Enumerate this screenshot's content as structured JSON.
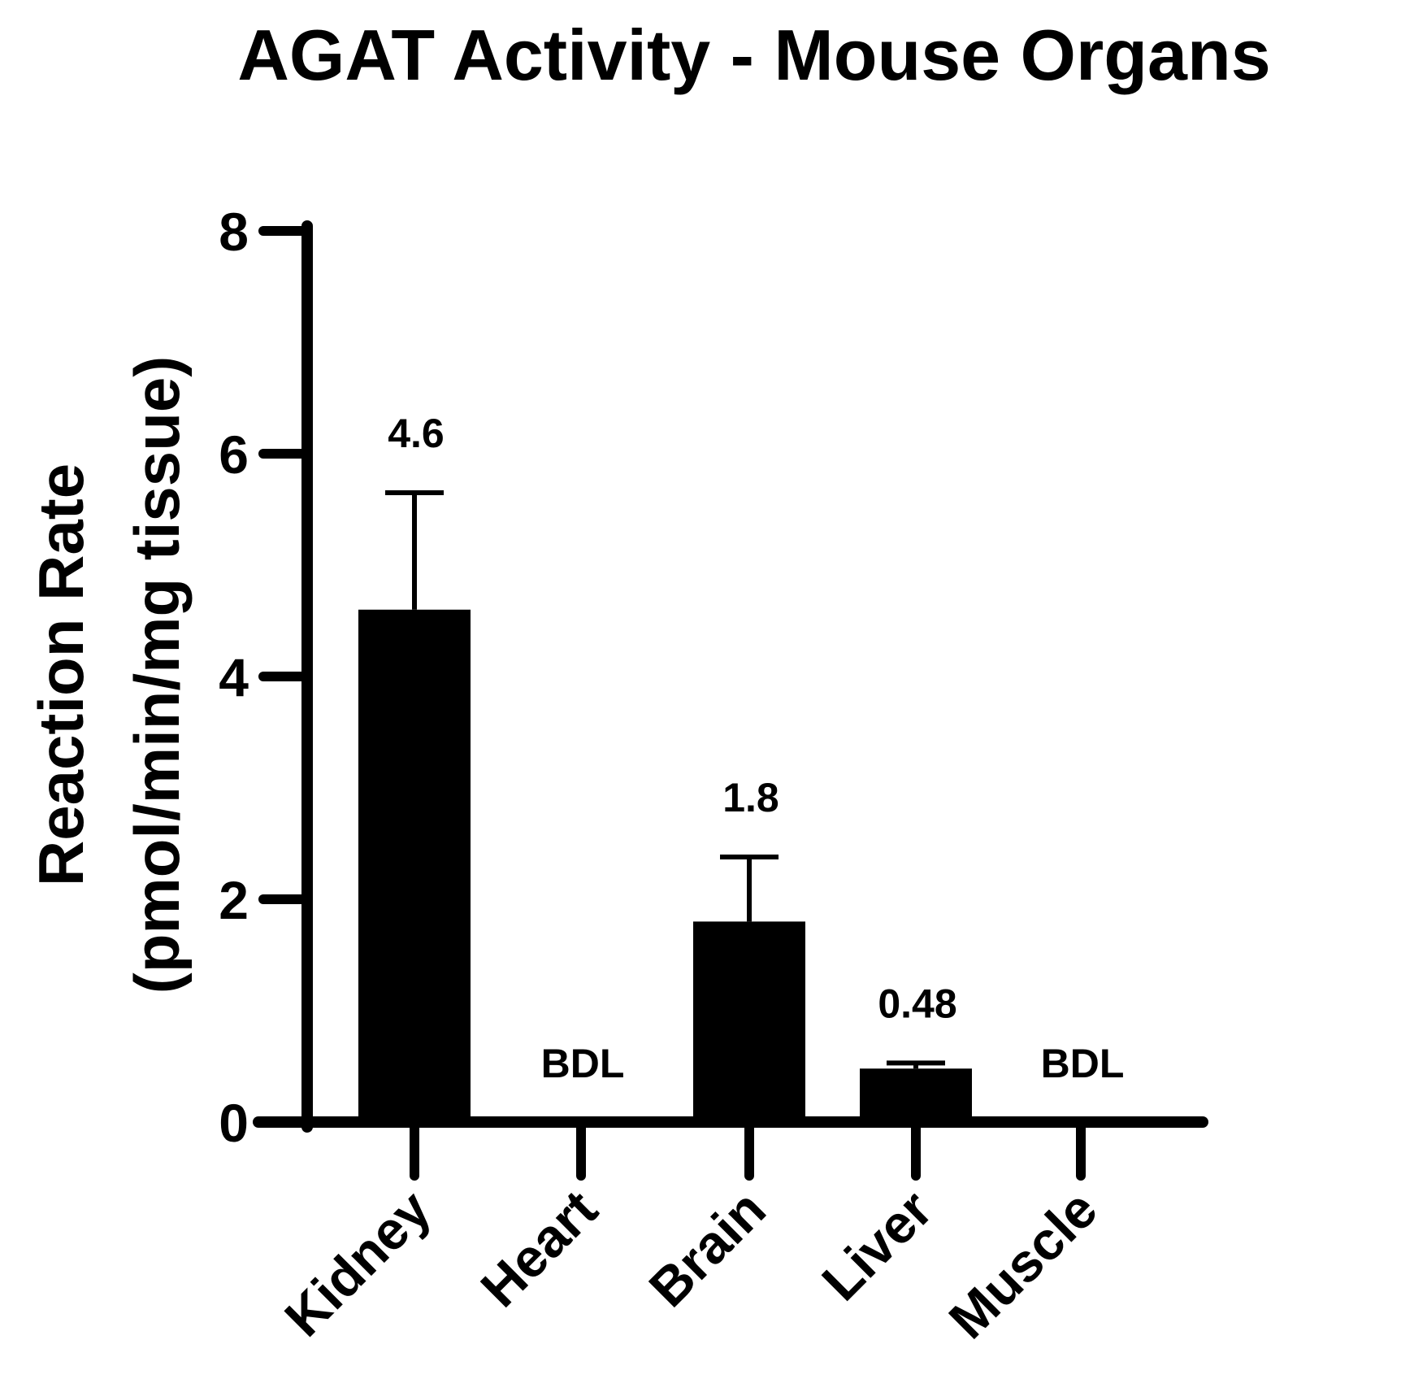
{
  "chart_data": {
    "type": "bar",
    "title": "AGAT Activity - Mouse Organs",
    "ylabel_line1": "Reaction Rate",
    "ylabel_line2": "(pmol/min/mg tissue)",
    "xlabel": "",
    "ylim": [
      0,
      8
    ],
    "yticks": [
      0,
      2,
      4,
      6,
      8
    ],
    "ytick_labels": [
      "0",
      "2",
      "4",
      "6",
      "8"
    ],
    "categories": [
      "Kidney",
      "Heart",
      "Brain",
      "Liver",
      "Muscle"
    ],
    "values": [
      4.6,
      0,
      1.8,
      0.48,
      0
    ],
    "error_upper": [
      5.65,
      null,
      2.38,
      0.53,
      null
    ],
    "data_labels": [
      "4.6",
      "BDL",
      "1.8",
      "0.48",
      "BDL"
    ],
    "bar_color": "#000000",
    "grid": false,
    "legend": "none"
  }
}
